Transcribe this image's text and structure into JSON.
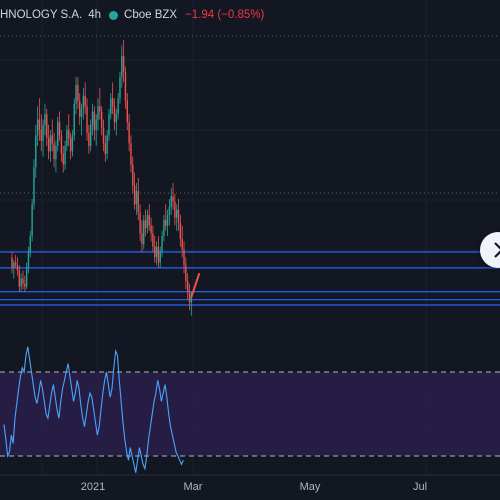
{
  "header": {
    "symbol": "HNOLOGY S.A.",
    "interval": "4h",
    "exchange": "Cboe BZX",
    "change": "−1.94 (−0.85%)",
    "status_color": "#26a69a"
  },
  "colors": {
    "background": "#131722",
    "up": "#26a69a",
    "down": "#ef5350",
    "level_line": "#2962ff",
    "rsi_line": "#4aa3ff",
    "rsi_band": "#2a1f4d",
    "axis_text": "#b2b5be"
  },
  "x_axis": {
    "labels": [
      "2021",
      "Mar",
      "May",
      "Jul"
    ]
  },
  "chart_data": {
    "type": "candlestick",
    "title": "HNOLOGY S.A. · 4h · Cboe BZX",
    "close_change": "−1.94 (−0.85%)",
    "x_labels": [
      "2021",
      "Mar",
      "May",
      "Jul"
    ],
    "candles": [
      [
        0.18,
        0.2,
        0.12,
        0.14
      ],
      [
        0.14,
        0.17,
        0.1,
        0.16
      ],
      [
        0.16,
        0.19,
        0.14,
        0.15
      ],
      [
        0.15,
        0.18,
        0.11,
        0.13
      ],
      [
        0.13,
        0.15,
        0.05,
        0.07
      ],
      [
        0.07,
        0.12,
        0.05,
        0.1
      ],
      [
        0.1,
        0.13,
        0.06,
        0.08
      ],
      [
        0.08,
        0.11,
        0.05,
        0.07
      ],
      [
        0.07,
        0.16,
        0.06,
        0.14
      ],
      [
        0.14,
        0.22,
        0.12,
        0.2
      ],
      [
        0.2,
        0.28,
        0.18,
        0.26
      ],
      [
        0.26,
        0.4,
        0.24,
        0.38
      ],
      [
        0.38,
        0.55,
        0.36,
        0.52
      ],
      [
        0.52,
        0.68,
        0.48,
        0.64
      ],
      [
        0.64,
        0.75,
        0.6,
        0.7
      ],
      [
        0.7,
        0.78,
        0.62,
        0.66
      ],
      [
        0.66,
        0.72,
        0.58,
        0.62
      ],
      [
        0.62,
        0.7,
        0.56,
        0.68
      ],
      [
        0.68,
        0.76,
        0.64,
        0.72
      ],
      [
        0.72,
        0.74,
        0.6,
        0.63
      ],
      [
        0.63,
        0.68,
        0.55,
        0.58
      ],
      [
        0.58,
        0.66,
        0.54,
        0.64
      ],
      [
        0.64,
        0.7,
        0.58,
        0.61
      ],
      [
        0.61,
        0.65,
        0.52,
        0.55
      ],
      [
        0.55,
        0.62,
        0.5,
        0.6
      ],
      [
        0.6,
        0.71,
        0.58,
        0.69
      ],
      [
        0.69,
        0.73,
        0.62,
        0.64
      ],
      [
        0.64,
        0.66,
        0.54,
        0.57
      ],
      [
        0.57,
        0.6,
        0.5,
        0.53
      ],
      [
        0.53,
        0.62,
        0.51,
        0.6
      ],
      [
        0.6,
        0.68,
        0.58,
        0.66
      ],
      [
        0.66,
        0.72,
        0.6,
        0.63
      ],
      [
        0.63,
        0.65,
        0.55,
        0.58
      ],
      [
        0.58,
        0.66,
        0.56,
        0.64
      ],
      [
        0.64,
        0.78,
        0.62,
        0.76
      ],
      [
        0.76,
        0.86,
        0.72,
        0.83
      ],
      [
        0.83,
        0.86,
        0.74,
        0.77
      ],
      [
        0.77,
        0.8,
        0.68,
        0.71
      ],
      [
        0.71,
        0.76,
        0.64,
        0.74
      ],
      [
        0.74,
        0.82,
        0.7,
        0.79
      ],
      [
        0.79,
        0.84,
        0.72,
        0.75
      ],
      [
        0.75,
        0.78,
        0.62,
        0.65
      ],
      [
        0.65,
        0.68,
        0.57,
        0.6
      ],
      [
        0.6,
        0.7,
        0.58,
        0.68
      ],
      [
        0.68,
        0.76,
        0.64,
        0.73
      ],
      [
        0.73,
        0.75,
        0.62,
        0.66
      ],
      [
        0.66,
        0.72,
        0.6,
        0.7
      ],
      [
        0.7,
        0.78,
        0.66,
        0.75
      ],
      [
        0.75,
        0.82,
        0.7,
        0.73
      ],
      [
        0.73,
        0.75,
        0.64,
        0.67
      ],
      [
        0.67,
        0.7,
        0.58,
        0.61
      ],
      [
        0.61,
        0.64,
        0.54,
        0.57
      ],
      [
        0.57,
        0.66,
        0.55,
        0.64
      ],
      [
        0.64,
        0.74,
        0.62,
        0.72
      ],
      [
        0.72,
        0.8,
        0.7,
        0.78
      ],
      [
        0.78,
        0.84,
        0.72,
        0.75
      ],
      [
        0.75,
        0.78,
        0.66,
        0.69
      ],
      [
        0.69,
        0.74,
        0.64,
        0.72
      ],
      [
        0.72,
        0.8,
        0.7,
        0.78
      ],
      [
        0.78,
        0.88,
        0.76,
        0.86
      ],
      [
        0.86,
        0.98,
        0.82,
        0.94
      ],
      [
        0.94,
        1.0,
        0.84,
        0.88
      ],
      [
        0.88,
        0.9,
        0.74,
        0.77
      ],
      [
        0.77,
        0.8,
        0.66,
        0.69
      ],
      [
        0.69,
        0.72,
        0.58,
        0.61
      ],
      [
        0.61,
        0.64,
        0.5,
        0.53
      ],
      [
        0.53,
        0.56,
        0.42,
        0.45
      ],
      [
        0.45,
        0.5,
        0.36,
        0.38
      ],
      [
        0.38,
        0.46,
        0.34,
        0.43
      ],
      [
        0.43,
        0.48,
        0.32,
        0.35
      ],
      [
        0.35,
        0.38,
        0.24,
        0.27
      ],
      [
        0.27,
        0.32,
        0.2,
        0.23
      ],
      [
        0.23,
        0.34,
        0.21,
        0.32
      ],
      [
        0.32,
        0.36,
        0.26,
        0.29
      ],
      [
        0.29,
        0.36,
        0.27,
        0.34
      ],
      [
        0.34,
        0.38,
        0.28,
        0.3
      ],
      [
        0.3,
        0.33,
        0.24,
        0.27
      ],
      [
        0.27,
        0.3,
        0.2,
        0.22
      ],
      [
        0.22,
        0.26,
        0.16,
        0.18
      ],
      [
        0.18,
        0.24,
        0.15,
        0.22
      ],
      [
        0.22,
        0.26,
        0.14,
        0.16
      ],
      [
        0.16,
        0.22,
        0.14,
        0.2
      ],
      [
        0.2,
        0.28,
        0.18,
        0.26
      ],
      [
        0.26,
        0.34,
        0.24,
        0.32
      ],
      [
        0.32,
        0.38,
        0.28,
        0.3
      ],
      [
        0.3,
        0.36,
        0.26,
        0.34
      ],
      [
        0.34,
        0.4,
        0.3,
        0.37
      ],
      [
        0.37,
        0.44,
        0.34,
        0.41
      ],
      [
        0.41,
        0.46,
        0.36,
        0.39
      ],
      [
        0.39,
        0.42,
        0.3,
        0.33
      ],
      [
        0.33,
        0.38,
        0.28,
        0.36
      ],
      [
        0.36,
        0.4,
        0.28,
        0.31
      ],
      [
        0.31,
        0.34,
        0.22,
        0.25
      ],
      [
        0.25,
        0.3,
        0.18,
        0.21
      ],
      [
        0.21,
        0.24,
        0.12,
        0.15
      ],
      [
        0.15,
        0.18,
        0.06,
        0.09
      ],
      [
        0.09,
        0.12,
        0.02,
        0.05
      ],
      [
        0.05,
        0.08,
        -0.02,
        0.01
      ],
      [
        0.01,
        0.05,
        -0.04,
        0.04
      ]
    ],
    "levels": [
      0.2,
      0.14,
      0.05,
      0.02,
      0.0
    ],
    "rsi": [
      45,
      38,
      30,
      32,
      40,
      36,
      48,
      55,
      62,
      68,
      72,
      70,
      78,
      82,
      76,
      70,
      64,
      58,
      55,
      60,
      66,
      62,
      56,
      50,
      48,
      54,
      60,
      64,
      58,
      52,
      48,
      56,
      62,
      66,
      70,
      74,
      68,
      62,
      56,
      60,
      66,
      62,
      54,
      48,
      44,
      50,
      56,
      60,
      58,
      52,
      46,
      40,
      44,
      52,
      60,
      66,
      70,
      64,
      58,
      62,
      72,
      80,
      78,
      66,
      56,
      46,
      38,
      32,
      28,
      34,
      30,
      26,
      22,
      28,
      34,
      30,
      26,
      24,
      30,
      38,
      44,
      50,
      56,
      60,
      66,
      62,
      56,
      60,
      64,
      58,
      50,
      44,
      40,
      36,
      32,
      30,
      28,
      26,
      28
    ],
    "rsi_band": [
      70,
      30
    ]
  }
}
